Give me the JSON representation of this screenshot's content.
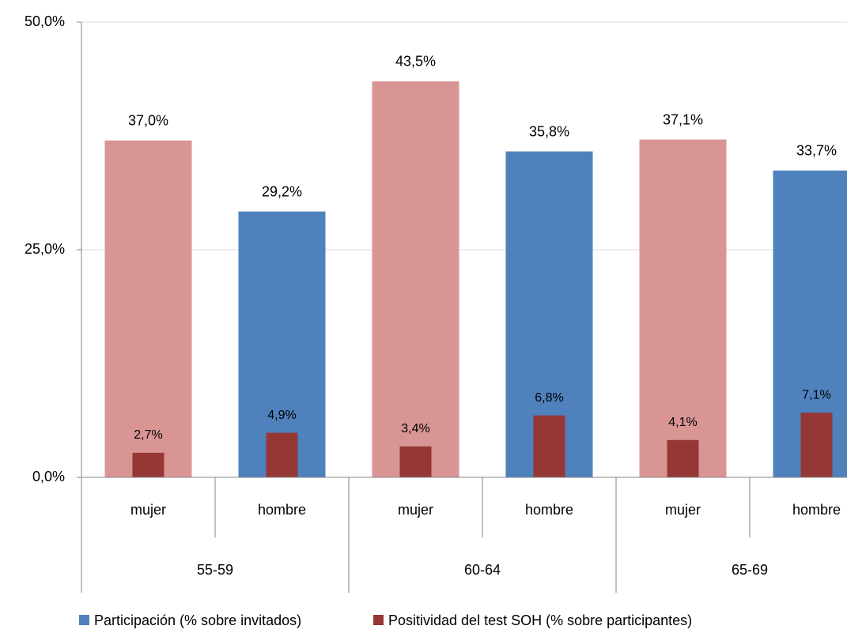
{
  "chart_data": {
    "type": "bar",
    "categories": [
      "mujer",
      "hombre",
      "mujer",
      "hombre",
      "mujer",
      "hombre"
    ],
    "groups": [
      "55-59",
      "60-64",
      "65-69"
    ],
    "series": [
      {
        "name": "Participación (% sobre invitados)",
        "color": "#4f81bd",
        "colors": [
          "#d99594",
          "#4f81bd",
          "#d99594",
          "#4f81bd",
          "#d99594",
          "#4f81bd"
        ],
        "values": [
          37.0,
          29.2,
          43.5,
          35.8,
          37.1,
          33.7
        ],
        "value_labels": [
          "37,0%",
          "29,2%",
          "43,5%",
          "35,8%",
          "37,1%",
          "33,7%"
        ]
      },
      {
        "name": "Positividad del test SOH (% sobre participantes)",
        "color": "#953735",
        "values": [
          2.7,
          4.9,
          3.4,
          6.8,
          4.1,
          7.1
        ],
        "value_labels": [
          "2,7%",
          "4,9%",
          "3,4%",
          "6,8%",
          "4,1%",
          "7,1%"
        ]
      }
    ],
    "ylim": [
      0,
      50
    ],
    "yticks": [
      {
        "value": 0,
        "label": "0,0%"
      },
      {
        "value": 25,
        "label": "25,0%"
      },
      {
        "value": 50,
        "label": "50,0%"
      }
    ],
    "grid": true
  }
}
